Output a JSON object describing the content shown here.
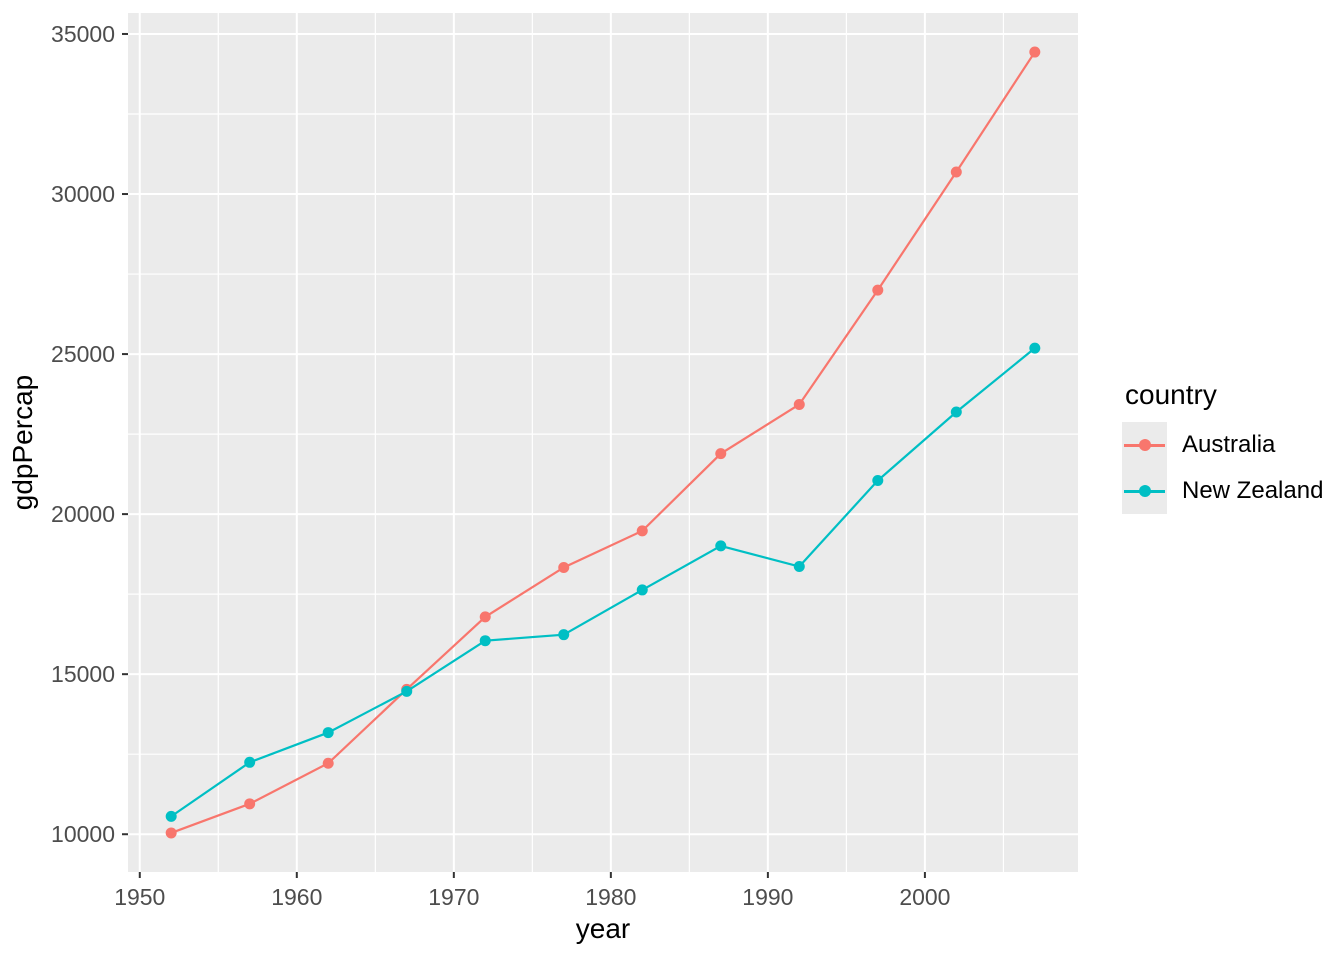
{
  "figure": {
    "background": "#FFFFFF",
    "panel_background": "#EBEBEB",
    "grid_color": "#FFFFFF",
    "tick_mark_color": "#333333",
    "tick_label_color": "#4D4D4D",
    "axis_title_color": "#000000"
  },
  "chart_data": {
    "type": "line",
    "title": "",
    "xlabel": "year",
    "ylabel": "gdpPercap",
    "x": [
      1952,
      1957,
      1962,
      1967,
      1972,
      1977,
      1982,
      1987,
      1992,
      1997,
      2002,
      2007
    ],
    "series": [
      {
        "name": "Australia",
        "color": "#F8766D",
        "values": [
          10040,
          10950,
          12217,
          14526,
          16789,
          18334,
          19477,
          21889,
          23425,
          26998,
          30688,
          34435
        ]
      },
      {
        "name": "New Zealand",
        "color": "#00BFC4",
        "values": [
          10557,
          12247,
          13176,
          14464,
          16046,
          16234,
          17632,
          19007,
          18363,
          21050,
          23190,
          25185
        ]
      }
    ],
    "xlim": [
      1949.25,
      2009.75
    ],
    "ylim": [
      8820,
      35655
    ],
    "x_ticks": [
      1950,
      1960,
      1970,
      1980,
      1990,
      2000
    ],
    "y_ticks": [
      10000,
      15000,
      20000,
      25000,
      30000,
      35000
    ],
    "x_minor": [
      1955,
      1965,
      1975,
      1985,
      1995,
      2005
    ],
    "y_minor": [
      12500,
      17500,
      22500,
      27500,
      32500
    ],
    "grid": true,
    "legend": {
      "title": "country",
      "position": "right"
    }
  }
}
